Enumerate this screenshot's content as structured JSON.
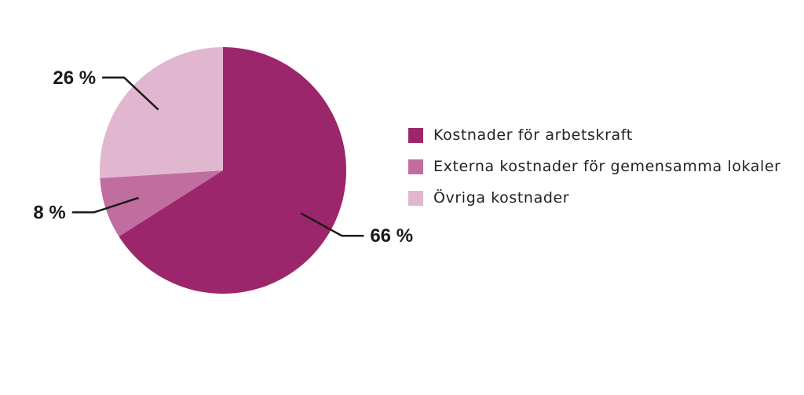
{
  "chart_data": {
    "type": "pie",
    "categories": [
      "Kostnader för arbetskraft",
      "Externa kostnader för gemensamma lokaler",
      "Övriga kostnader"
    ],
    "values": [
      66,
      8,
      26
    ],
    "value_labels": [
      "66 %",
      "8 %",
      "26 %"
    ],
    "colors": [
      "#9c266b",
      "#c06d9f",
      "#e0b7cf"
    ],
    "title": "",
    "legend_position": "right"
  },
  "colors": {
    "label_text": "#1a1a1a",
    "leader_line": "#1a1a1a"
  }
}
